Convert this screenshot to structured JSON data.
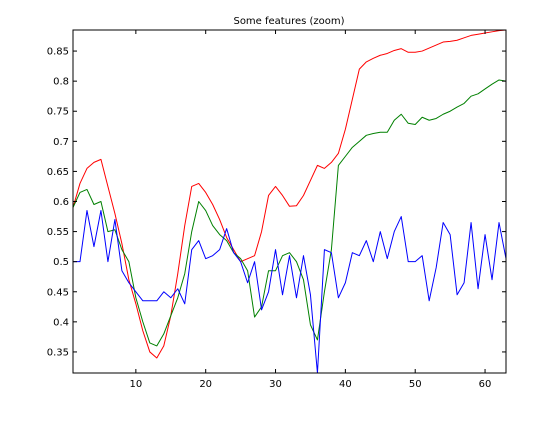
{
  "chart_data": {
    "type": "line",
    "title": "Some features (zoom)",
    "xlabel": "",
    "ylabel": "",
    "xlim": [
      1,
      63
    ],
    "ylim": [
      0.315,
      0.885
    ],
    "grid": false,
    "xticks": [
      10,
      20,
      30,
      40,
      50,
      60
    ],
    "yticks": [
      0.35,
      0.4,
      0.45,
      0.5,
      0.55,
      0.6,
      0.65,
      0.7,
      0.75,
      0.8,
      0.85
    ],
    "x": [
      1,
      2,
      3,
      4,
      5,
      6,
      7,
      8,
      9,
      10,
      11,
      12,
      13,
      14,
      15,
      16,
      17,
      18,
      19,
      20,
      21,
      22,
      23,
      24,
      25,
      26,
      27,
      28,
      29,
      30,
      31,
      32,
      33,
      34,
      35,
      36,
      37,
      38,
      39,
      40,
      41,
      42,
      43,
      44,
      45,
      46,
      47,
      48,
      49,
      50,
      51,
      52,
      53,
      54,
      55,
      56,
      57,
      58,
      59,
      60,
      61,
      62,
      63
    ],
    "series": [
      {
        "color": "#ff0000",
        "values": [
          0.59,
          0.63,
          0.655,
          0.665,
          0.67,
          0.625,
          0.58,
          0.53,
          0.47,
          0.43,
          0.385,
          0.35,
          0.34,
          0.36,
          0.41,
          0.48,
          0.56,
          0.625,
          0.63,
          0.615,
          0.595,
          0.57,
          0.54,
          0.52,
          0.5,
          0.505,
          0.51,
          0.55,
          0.61,
          0.625,
          0.61,
          0.592,
          0.593,
          0.61,
          0.635,
          0.66,
          0.655,
          0.665,
          0.68,
          0.72,
          0.77,
          0.82,
          0.832,
          0.838,
          0.843,
          0.846,
          0.851,
          0.854,
          0.848,
          0.848,
          0.85,
          0.855,
          0.86,
          0.865,
          0.866,
          0.868,
          0.872,
          0.876,
          0.878,
          0.88,
          0.882,
          0.884,
          0.885
        ]
      },
      {
        "color": "#008000",
        "values": [
          0.59,
          0.615,
          0.62,
          0.595,
          0.6,
          0.55,
          0.553,
          0.52,
          0.5,
          0.44,
          0.4,
          0.365,
          0.36,
          0.38,
          0.41,
          0.44,
          0.48,
          0.55,
          0.6,
          0.585,
          0.56,
          0.545,
          0.535,
          0.515,
          0.505,
          0.485,
          0.408,
          0.425,
          0.485,
          0.485,
          0.51,
          0.515,
          0.5,
          0.47,
          0.395,
          0.37,
          0.45,
          0.52,
          0.66,
          0.675,
          0.69,
          0.7,
          0.71,
          0.713,
          0.715,
          0.715,
          0.735,
          0.745,
          0.73,
          0.728,
          0.74,
          0.735,
          0.738,
          0.745,
          0.75,
          0.757,
          0.763,
          0.775,
          0.779,
          0.787,
          0.795,
          0.802,
          0.8
        ]
      },
      {
        "color": "#0000ff",
        "values": [
          0.5,
          0.5,
          0.585,
          0.525,
          0.585,
          0.5,
          0.57,
          0.485,
          0.465,
          0.45,
          0.435,
          0.435,
          0.435,
          0.45,
          0.44,
          0.455,
          0.43,
          0.52,
          0.535,
          0.505,
          0.51,
          0.52,
          0.555,
          0.515,
          0.5,
          0.465,
          0.5,
          0.42,
          0.45,
          0.52,
          0.445,
          0.51,
          0.44,
          0.51,
          0.445,
          0.315,
          0.52,
          0.515,
          0.44,
          0.465,
          0.515,
          0.51,
          0.535,
          0.5,
          0.55,
          0.505,
          0.55,
          0.575,
          0.5,
          0.5,
          0.51,
          0.435,
          0.49,
          0.565,
          0.545,
          0.445,
          0.465,
          0.565,
          0.455,
          0.545,
          0.47,
          0.565,
          0.505
        ]
      }
    ]
  }
}
